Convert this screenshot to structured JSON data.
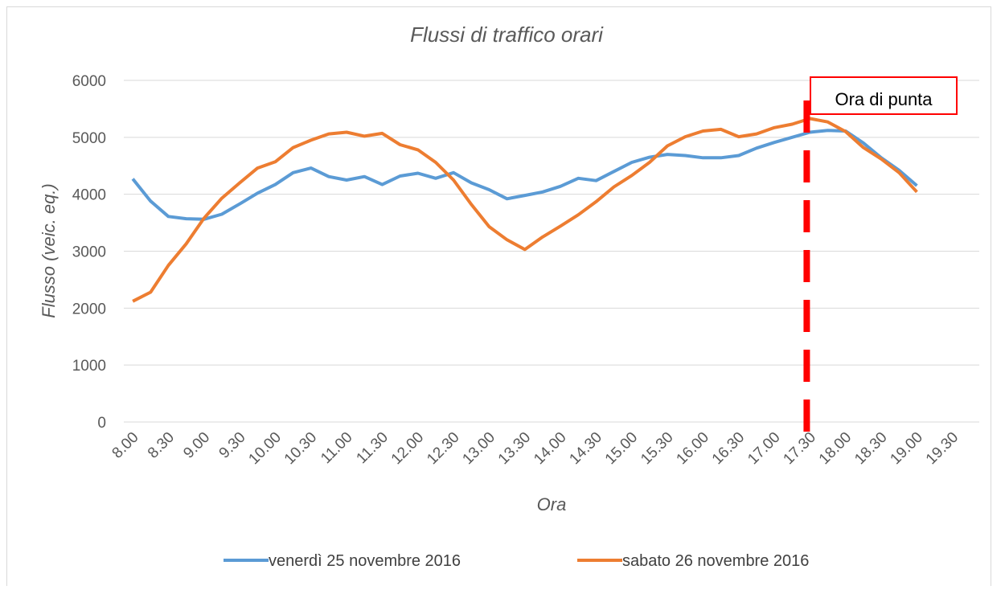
{
  "chart_data": {
    "type": "line",
    "title": "Flussi di traffico orari",
    "x_label": "Ora",
    "y_label": "Flusso (veic. eq.)",
    "categories": [
      "8.00",
      null,
      "8.30",
      null,
      "9.00",
      null,
      "9.30",
      null,
      "10.00",
      null,
      "10.30",
      null,
      "11.00",
      null,
      "11.30",
      null,
      "12.00",
      null,
      "12.30",
      null,
      "13.00",
      null,
      "13.30",
      null,
      "14.00",
      null,
      "14.30",
      null,
      "15.00",
      null,
      "15.30",
      null,
      "16.00",
      null,
      "16.30",
      null,
      "17.00",
      null,
      "17.30",
      null,
      "18.00",
      null,
      "18.30",
      null,
      "19.00",
      null,
      "19.30",
      null
    ],
    "series": [
      {
        "name": "venerdì 25 novembre 2016",
        "color": "#5b9bd5",
        "values": [
          4270,
          3880,
          3610,
          3570,
          3560,
          3650,
          3830,
          4020,
          4170,
          4380,
          4460,
          4310,
          4250,
          4310,
          4170,
          4320,
          4370,
          4280,
          4380,
          4200,
          4080,
          3920,
          3980,
          4040,
          4140,
          4280,
          4240,
          4400,
          4560,
          4650,
          4700,
          4680,
          4640,
          4640,
          4680,
          4810,
          4910,
          5000,
          5090,
          5120,
          5110,
          4900,
          4640,
          4420,
          4150,
          null,
          null,
          null
        ]
      },
      {
        "name": "sabato 26 novembre 2016",
        "color": "#ed7d31",
        "values": [
          2120,
          2280,
          2750,
          3130,
          3580,
          3930,
          4200,
          4460,
          4570,
          4820,
          4950,
          5060,
          5090,
          5020,
          5070,
          4870,
          4780,
          4560,
          4250,
          3820,
          3430,
          3200,
          3030,
          3250,
          3440,
          3640,
          3870,
          4130,
          4330,
          4560,
          4850,
          5010,
          5110,
          5140,
          5010,
          5060,
          5170,
          5230,
          5330,
          5270,
          5100,
          4820,
          4620,
          4380,
          4040,
          null,
          null,
          null
        ]
      }
    ],
    "ylim": [
      0,
      6000
    ],
    "yticks": [
      0,
      1000,
      2000,
      3000,
      4000,
      5000,
      6000
    ],
    "grid": true,
    "legend": "bottom",
    "annotation": {
      "text": "Ora di punta",
      "x": "17.30",
      "color": "#ff0000"
    }
  }
}
